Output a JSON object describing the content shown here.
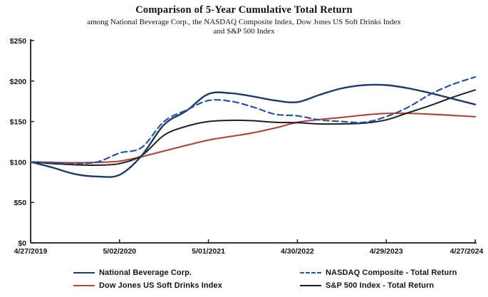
{
  "header": {
    "title": "Comparison of 5-Year Cumulative Total Return",
    "subtitle_line1": "among National Beverage Corp., the NASDAQ Composite Index, Dow Jones US Soft Drinks Index",
    "subtitle_line2": "and S&P 500 Index"
  },
  "chart_data": {
    "type": "line",
    "title": "Comparison of 5-Year Cumulative Total Return",
    "subtitle": "among National Beverage Corp., the NASDAQ Composite Index, Dow Jones US Soft Drinks Index and S&P 500 Index",
    "x_tick_labels": [
      "4/27/2019",
      "5/02/2020",
      "5/01/2021",
      "4/30/2022",
      "4/29/2023",
      "4/27/2024"
    ],
    "y_tick_labels": [
      "$0",
      "$50",
      "$100",
      "$150",
      "$200",
      "$250"
    ],
    "y_tick_values": [
      0,
      50,
      100,
      150,
      200,
      250
    ],
    "ylim": [
      0,
      250
    ],
    "grid": "off",
    "legend_position": "bottom",
    "samples_per_year": 4,
    "axis_color": "#1a1a1a",
    "draw_order": [
      2,
      3,
      0,
      1
    ],
    "series": [
      {
        "name": "National Beverage Corp.",
        "color": "#1f3a63",
        "style": "solid",
        "width": 2.4,
        "values": [
          100,
          93,
          85,
          82,
          84,
          108,
          146,
          163,
          184,
          185,
          181,
          176,
          174,
          183,
          191,
          195,
          195,
          191,
          185,
          178,
          171
        ]
      },
      {
        "name": "NASDAQ Composite - Total Return",
        "color": "#2e5496",
        "style": "dashed",
        "width": 2.2,
        "values": [
          100,
          99,
          98,
          100,
          111,
          118,
          150,
          164,
          176,
          175,
          168,
          159,
          157,
          152,
          150,
          149,
          156,
          168,
          184,
          196,
          205
        ]
      },
      {
        "name": "Dow Jones US Soft Drinks Index",
        "color": "#a94a45",
        "style": "solid",
        "width": 2.2,
        "values": [
          100,
          99.5,
          99,
          99.5,
          101,
          106.5,
          113.5,
          120.5,
          127,
          131.5,
          136,
          142,
          149,
          152.5,
          155,
          158,
          160,
          160,
          159,
          157.5,
          156
        ]
      },
      {
        "name": "S&P 500 Index - Total Return",
        "color": "#1f1f1f",
        "style": "solid",
        "width": 2.0,
        "values": [
          100,
          98,
          96.5,
          96,
          98,
          108,
          133,
          144,
          150,
          151.5,
          151,
          149,
          148.5,
          147,
          147,
          148,
          152,
          161,
          170,
          180,
          189
        ]
      }
    ]
  }
}
